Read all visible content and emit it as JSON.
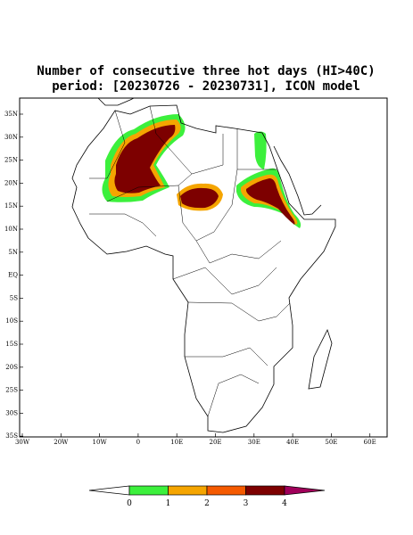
{
  "title": [
    "Number of consecutive three hot days (HI>40C)",
    "period: [20230726 - 20230731], ICON model"
  ],
  "lat_labels": [
    "35N",
    "30N",
    "25N",
    "20N",
    "15N",
    "10N",
    "5N",
    "EQ",
    "5S",
    "10S",
    "15S",
    "20S",
    "25S",
    "30S",
    "35S"
  ],
  "lon_labels": [
    "30W",
    "20W",
    "10W",
    "0",
    "10E",
    "20E",
    "30E",
    "40E",
    "50E",
    "60E"
  ],
  "colorbar": {
    "labels": [
      "0",
      "1",
      "2",
      "3",
      "4"
    ],
    "colors": [
      "#ffffff",
      "#3cf03c",
      "#f5a500",
      "#f55a00",
      "#7d0000",
      "#a0005a"
    ]
  }
}
